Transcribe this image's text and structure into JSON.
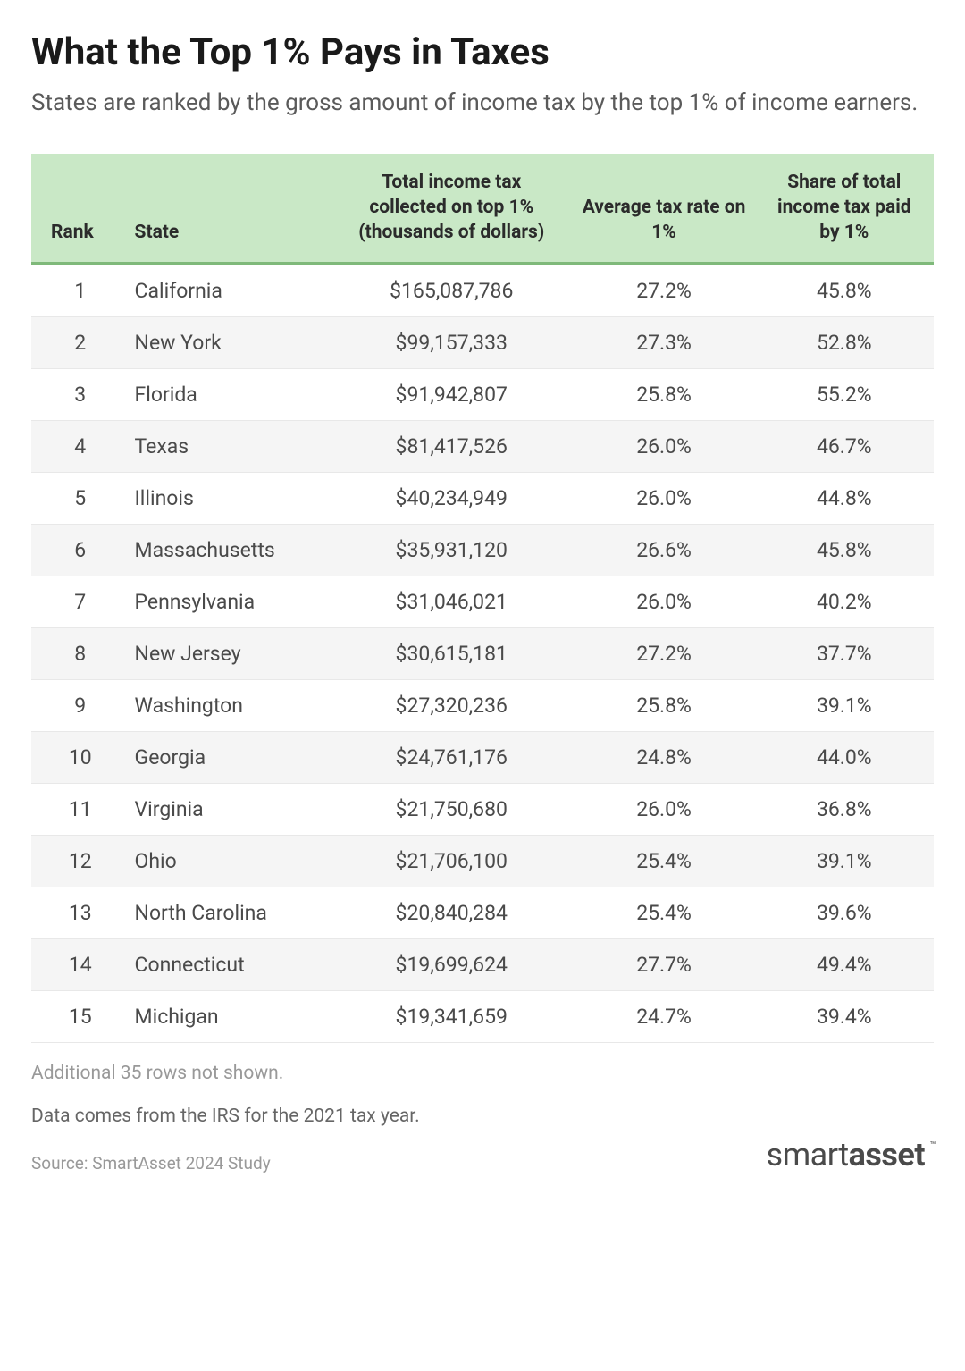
{
  "title": "What the Top 1% Pays in Taxes",
  "subtitle": "States are ranked by the gross amount of income tax by the top 1% of income earners.",
  "table": {
    "type": "table",
    "header_bg_color": "#c9e8c6",
    "header_border_color": "#7fb97a",
    "row_alt_color": "#f5f5f5",
    "columns": [
      {
        "key": "rank",
        "label": "Rank",
        "align": "left"
      },
      {
        "key": "state",
        "label": "State",
        "align": "left"
      },
      {
        "key": "total_tax",
        "label": "Total income tax collected on top 1% (thousands of dollars)",
        "align": "center"
      },
      {
        "key": "avg_rate",
        "label": "Average tax rate on 1%",
        "align": "center"
      },
      {
        "key": "share",
        "label": "Share of total income tax paid by 1%",
        "align": "center"
      }
    ],
    "rows": [
      {
        "rank": "1",
        "state": "California",
        "total_tax": "$165,087,786",
        "avg_rate": "27.2%",
        "share": "45.8%"
      },
      {
        "rank": "2",
        "state": "New York",
        "total_tax": "$99,157,333",
        "avg_rate": "27.3%",
        "share": "52.8%"
      },
      {
        "rank": "3",
        "state": "Florida",
        "total_tax": "$91,942,807",
        "avg_rate": "25.8%",
        "share": "55.2%"
      },
      {
        "rank": "4",
        "state": "Texas",
        "total_tax": "$81,417,526",
        "avg_rate": "26.0%",
        "share": "46.7%"
      },
      {
        "rank": "5",
        "state": "Illinois",
        "total_tax": "$40,234,949",
        "avg_rate": "26.0%",
        "share": "44.8%"
      },
      {
        "rank": "6",
        "state": "Massachusetts",
        "total_tax": "$35,931,120",
        "avg_rate": "26.6%",
        "share": "45.8%"
      },
      {
        "rank": "7",
        "state": "Pennsylvania",
        "total_tax": "$31,046,021",
        "avg_rate": "26.0%",
        "share": "40.2%"
      },
      {
        "rank": "8",
        "state": "New Jersey",
        "total_tax": "$30,615,181",
        "avg_rate": "27.2%",
        "share": "37.7%"
      },
      {
        "rank": "9",
        "state": "Washington",
        "total_tax": "$27,320,236",
        "avg_rate": "25.8%",
        "share": "39.1%"
      },
      {
        "rank": "10",
        "state": "Georgia",
        "total_tax": "$24,761,176",
        "avg_rate": "24.8%",
        "share": "44.0%"
      },
      {
        "rank": "11",
        "state": "Virginia",
        "total_tax": "$21,750,680",
        "avg_rate": "26.0%",
        "share": "36.8%"
      },
      {
        "rank": "12",
        "state": "Ohio",
        "total_tax": "$21,706,100",
        "avg_rate": "25.4%",
        "share": "39.1%"
      },
      {
        "rank": "13",
        "state": "North Carolina",
        "total_tax": "$20,840,284",
        "avg_rate": "25.4%",
        "share": "39.6%"
      },
      {
        "rank": "14",
        "state": "Connecticut",
        "total_tax": "$19,699,624",
        "avg_rate": "27.7%",
        "share": "49.4%"
      },
      {
        "rank": "15",
        "state": "Michigan",
        "total_tax": "$19,341,659",
        "avg_rate": "24.7%",
        "share": "39.4%"
      }
    ]
  },
  "footnote_rows": "Additional 35 rows not shown.",
  "footnote_data": "Data comes from the IRS for the 2021 tax year.",
  "source": "Source: SmartAsset 2024 Study",
  "logo_part1": "smart",
  "logo_part2": "asset",
  "logo_tm": "™"
}
